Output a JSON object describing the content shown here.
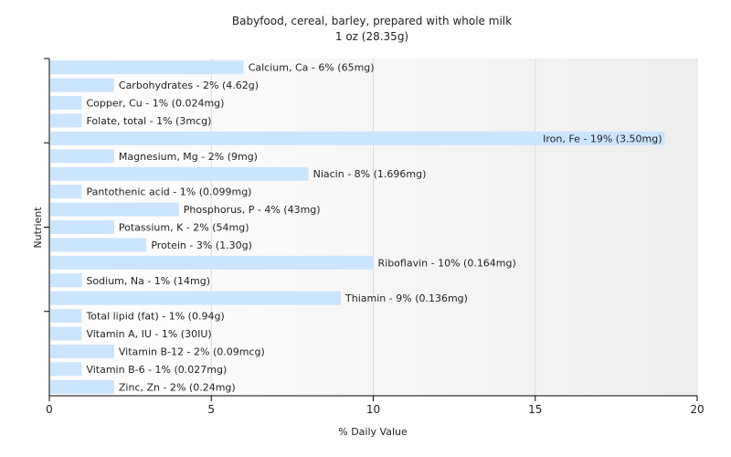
{
  "chart_data": {
    "type": "bar",
    "orientation": "horizontal",
    "title": "Babyfood, cereal, barley, prepared with whole milk",
    "subtitle": "1 oz (28.35g)",
    "xlabel": "% Daily Value",
    "ylabel": "Nutrient",
    "xlim": [
      0,
      20
    ],
    "xticks": [
      0,
      5,
      10,
      15,
      20
    ],
    "grid": true,
    "legend": "none",
    "bar_color": "#cce5ff",
    "categories": [
      "Calcium, Ca",
      "Carbohydrates",
      "Copper, Cu",
      "Folate, total",
      "Iron, Fe",
      "Magnesium, Mg",
      "Niacin",
      "Pantothenic acid",
      "Phosphorus, P",
      "Potassium, K",
      "Protein",
      "Riboflavin",
      "Sodium, Na",
      "Thiamin",
      "Total lipid (fat)",
      "Vitamin A, IU",
      "Vitamin B-12",
      "Vitamin B-6",
      "Zinc, Zn"
    ],
    "values": [
      6,
      2,
      1,
      1,
      19,
      2,
      8,
      1,
      4,
      2,
      3,
      10,
      1,
      9,
      1,
      1,
      2,
      1,
      2
    ],
    "labels": [
      "Calcium, Ca - 6% (65mg)",
      "Carbohydrates - 2% (4.62g)",
      "Copper, Cu - 1% (0.024mg)",
      "Folate, total - 1% (3mcg)",
      "Iron, Fe - 19% (3.50mg)",
      "Magnesium, Mg - 2% (9mg)",
      "Niacin - 8% (1.696mg)",
      "Pantothenic acid - 1% (0.099mg)",
      "Phosphorus, P - 4% (43mg)",
      "Potassium, K - 2% (54mg)",
      "Protein - 3% (1.30g)",
      "Riboflavin - 10% (0.164mg)",
      "Sodium, Na - 1% (14mg)",
      "Thiamin - 9% (0.136mg)",
      "Total lipid (fat) - 1% (0.94g)",
      "Vitamin A, IU - 1% (30IU)",
      "Vitamin B-12 - 2% (0.09mcg)",
      "Vitamin B-6 - 1% (0.027mg)",
      "Zinc, Zn - 2% (0.24mg)"
    ]
  }
}
